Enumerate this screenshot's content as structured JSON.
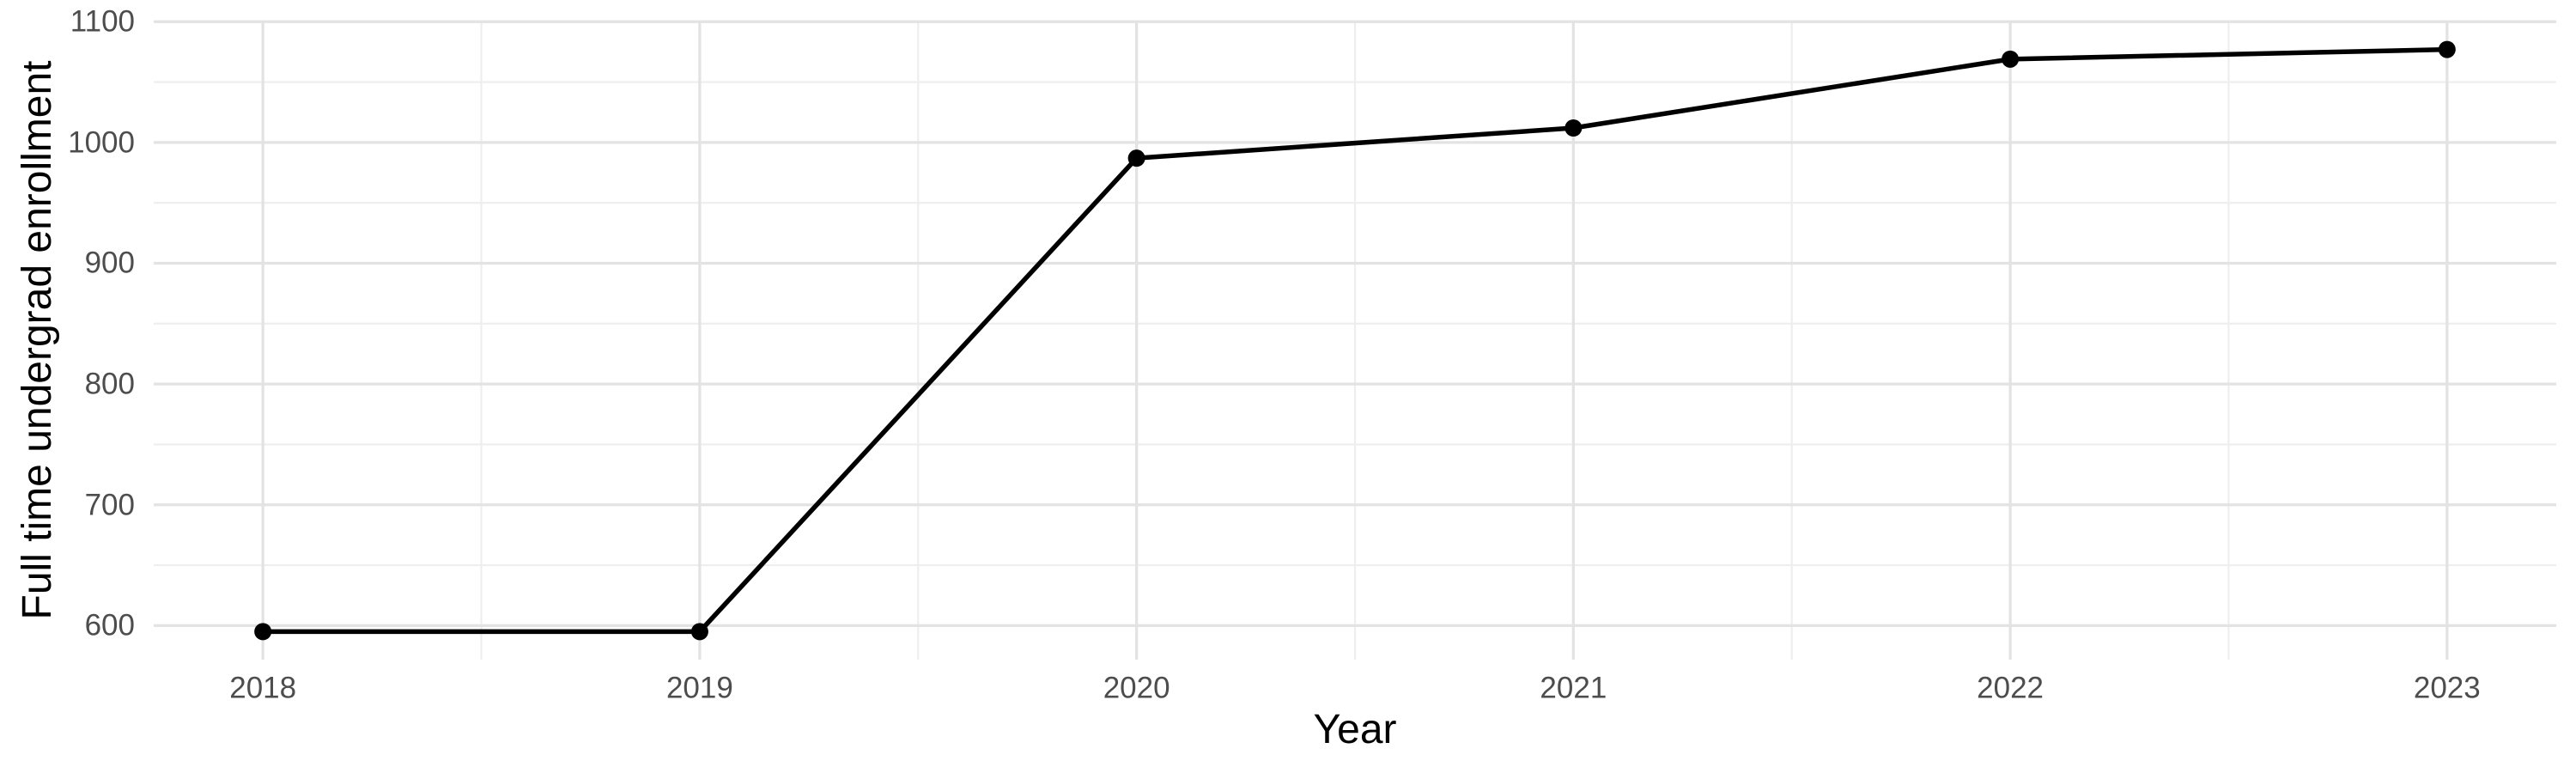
{
  "chart_data": {
    "type": "line",
    "title": "",
    "xlabel": "Year",
    "ylabel": "Full time undergrad enrollment",
    "series": [
      {
        "name": "Full time undergrad enrollment",
        "x": [
          2018,
          2019,
          2020,
          2021,
          2022,
          2023
        ],
        "values": [
          595,
          595,
          987,
          1012,
          1069,
          1077
        ]
      }
    ],
    "x_ticks": [
      "2018",
      "2019",
      "2020",
      "2021",
      "2022",
      "2023"
    ],
    "x_tick_values": [
      2018,
      2019,
      2020,
      2021,
      2022,
      2023
    ],
    "y_ticks": [
      "600",
      "700",
      "800",
      "900",
      "1000",
      "1100"
    ],
    "y_tick_values": [
      600,
      700,
      800,
      900,
      1000,
      1100
    ],
    "x_minor_gridlines": [
      2018.5,
      2019.5,
      2020.5,
      2021.5,
      2022.5
    ],
    "y_minor_gridlines": [
      650,
      750,
      850,
      950,
      1050
    ],
    "xlim": [
      2017.75,
      2023.25
    ],
    "ylim": [
      571.8,
      1100.9
    ],
    "grid": "on",
    "legend_position": "none",
    "point_style": "filled-circle",
    "colors": {
      "line": "#000000",
      "point": "#000000",
      "grid_major": "#E3E3E3",
      "grid_minor": "#EEEEEE",
      "tick_label": "#4D4D4D",
      "axis_title": "#000000",
      "background": "#FFFFFF"
    }
  }
}
